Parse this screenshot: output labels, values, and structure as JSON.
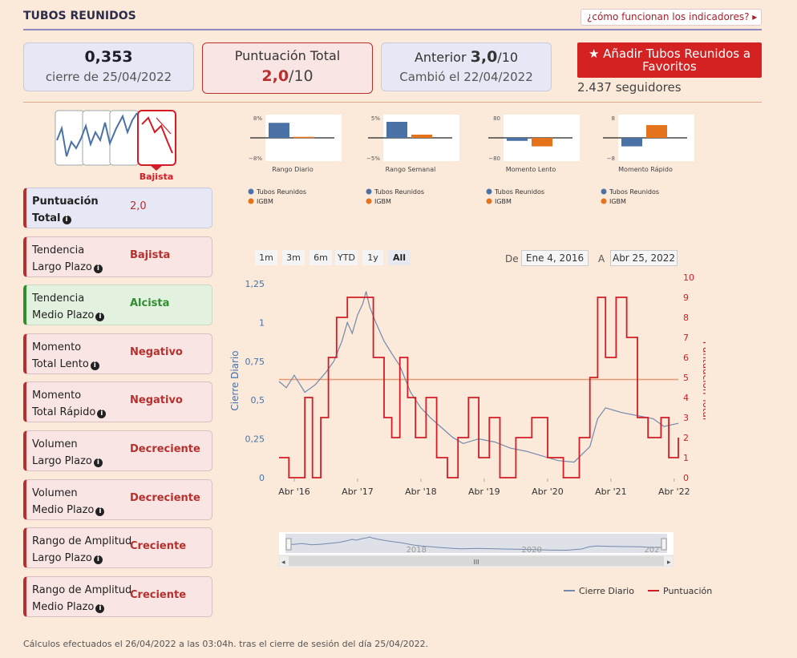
{
  "header": {
    "title": "TUBOS REUNIDOS",
    "help_link": "¿cómo funcionan los indicadores? ▸"
  },
  "close_card": {
    "value": "0,353",
    "caption": "cierre de 25/04/2022"
  },
  "score_card": {
    "title": "Puntuación Total",
    "value": "2,0",
    "suffix": "/10"
  },
  "previous_card": {
    "label": "Anterior ",
    "value": "3,0",
    "suffix": "/10",
    "caption": "Cambió el 22/04/2022"
  },
  "favorites": {
    "label": "★ Añadir Tubos Reunidos a Favoritos",
    "followers": "2.437 seguidores"
  },
  "trend_icon": {
    "label": "Bajista"
  },
  "indicators": [
    {
      "line1": "Puntuación",
      "line2": "Total",
      "value": "2,0",
      "style": "blue"
    },
    {
      "line1": "Tendencia",
      "line2": "Largo Plazo",
      "value": "Bajista",
      "style": "red"
    },
    {
      "line1": "Tendencia",
      "line2": "Medio Plazo",
      "value": "Alcista",
      "style": "green"
    },
    {
      "line1": "Momento",
      "line2": "Total Lento",
      "value": "Negativo",
      "style": "red"
    },
    {
      "line1": "Momento",
      "line2": "Total Rápido",
      "value": "Negativo",
      "style": "red"
    },
    {
      "line1": "Volumen",
      "line2": "Largo Plazo",
      "value": "Decreciente",
      "style": "red"
    },
    {
      "line1": "Volumen",
      "line2": "Medio Plazo",
      "value": "Decreciente",
      "style": "red"
    },
    {
      "line1": "Rango de Amplitud",
      "line2": "Largo Plazo",
      "value": "Creciente",
      "style": "red"
    },
    {
      "line1": "Rango de Amplitud",
      "line2": "Medio Plazo",
      "value": "Creciente",
      "style": "red"
    }
  ],
  "mini_legend": {
    "series1": "Tubos Reunidos",
    "series2": "IGBM"
  },
  "range_buttons": [
    "1m",
    "3m",
    "6m",
    "YTD",
    "1y",
    "All"
  ],
  "date_range": {
    "from_label": "De",
    "from": "Ene 4, 2016",
    "to_label": "A",
    "to": "Abr 25, 2022"
  },
  "legend": {
    "close": "Cierre Diario",
    "score": "Puntuación"
  },
  "navigator": {
    "labels": [
      "2018",
      "2020",
      "202"
    ],
    "handle": "III"
  },
  "footer": "Cálculos efectuados el 26/04/2022 a las 03:04h. tras el cierre de sesión del día 25/04/2022.",
  "colors": {
    "tubos": "#4a72a6",
    "igbm": "#e4731b",
    "score": "#d41c26",
    "close": "#7389ad"
  },
  "chart_data": [
    {
      "type": "bar",
      "title": "Rango Diario",
      "ylim": [
        -8,
        8
      ],
      "tick_labels": [
        "8%",
        "−8%"
      ],
      "series": [
        {
          "name": "Tubos Reunidos",
          "values": [
            6
          ]
        },
        {
          "name": "IGBM",
          "values": [
            0.4
          ]
        }
      ]
    },
    {
      "type": "bar",
      "title": "Rango Semanal",
      "ylim": [
        -5,
        5
      ],
      "tick_labels": [
        "5%",
        "−5%"
      ],
      "series": [
        {
          "name": "Tubos Reunidos",
          "values": [
            4
          ]
        },
        {
          "name": "IGBM",
          "values": [
            0.8
          ]
        }
      ]
    },
    {
      "type": "bar",
      "title": "Momento Lento",
      "ylim": [
        -80,
        80
      ],
      "tick_labels": [
        "80",
        "−80"
      ],
      "series": [
        {
          "name": "Tubos Reunidos",
          "values": [
            -12
          ]
        },
        {
          "name": "IGBM",
          "values": [
            -34
          ]
        }
      ]
    },
    {
      "type": "bar",
      "title": "Momento Rápido",
      "ylim": [
        -8,
        8
      ],
      "tick_labels": [
        "8",
        "−8"
      ],
      "series": [
        {
          "name": "Tubos Reunidos",
          "values": [
            -3.4
          ]
        },
        {
          "name": "IGBM",
          "values": [
            5.1
          ]
        }
      ]
    },
    {
      "type": "line",
      "xlim": [
        "2016-01-04",
        "2022-04-25"
      ],
      "x_tick_labels": [
        "Abr '16",
        "Abr '17",
        "Abr '18",
        "Abr '19",
        "Abr '20",
        "Abr '21",
        "Abr '22"
      ],
      "ylabel": "Cierre Diario",
      "ylim": [
        0,
        1.25
      ],
      "y_tick_labels": [
        "0",
        "0,25",
        "0,5",
        "0,75",
        "1",
        "1,25"
      ],
      "y2label": "Puntuación Total",
      "y2lim": [
        0,
        10
      ],
      "y2_tick_labels": [
        "0",
        "1",
        "2",
        "3",
        "4",
        "5",
        "6",
        "7",
        "8",
        "9",
        "10"
      ],
      "reference_line_y2": 4.9,
      "series": [
        {
          "name": "Cierre Diario",
          "axis": "y",
          "points": [
            [
              "2016-01-04",
              0.62
            ],
            [
              "2016-02-15",
              0.58
            ],
            [
              "2016-04-01",
              0.66
            ],
            [
              "2016-06-01",
              0.55
            ],
            [
              "2016-08-01",
              0.6
            ],
            [
              "2016-10-01",
              0.68
            ],
            [
              "2016-11-15",
              0.75
            ],
            [
              "2017-01-01",
              0.88
            ],
            [
              "2017-02-01",
              1.0
            ],
            [
              "2017-03-01",
              0.93
            ],
            [
              "2017-04-01",
              1.05
            ],
            [
              "2017-05-01",
              1.12
            ],
            [
              "2017-05-20",
              1.2
            ],
            [
              "2017-06-10",
              1.1
            ],
            [
              "2017-07-15",
              1.0
            ],
            [
              "2017-09-01",
              0.88
            ],
            [
              "2017-10-15",
              0.8
            ],
            [
              "2017-12-01",
              0.72
            ],
            [
              "2018-02-01",
              0.55
            ],
            [
              "2018-04-01",
              0.45
            ],
            [
              "2018-06-01",
              0.38
            ],
            [
              "2018-08-01",
              0.32
            ],
            [
              "2018-10-01",
              0.26
            ],
            [
              "2018-12-01",
              0.22
            ],
            [
              "2019-03-01",
              0.25
            ],
            [
              "2019-06-01",
              0.23
            ],
            [
              "2019-09-01",
              0.19
            ],
            [
              "2019-12-01",
              0.17
            ],
            [
              "2020-03-01",
              0.14
            ],
            [
              "2020-06-01",
              0.11
            ],
            [
              "2020-09-01",
              0.1
            ],
            [
              "2020-12-01",
              0.2
            ],
            [
              "2021-01-15",
              0.38
            ],
            [
              "2021-03-01",
              0.45
            ],
            [
              "2021-06-01",
              0.42
            ],
            [
              "2021-09-01",
              0.4
            ],
            [
              "2021-12-01",
              0.38
            ],
            [
              "2022-02-01",
              0.33
            ],
            [
              "2022-04-25",
              0.35
            ]
          ]
        },
        {
          "name": "Puntuación",
          "axis": "y2",
          "points": [
            [
              "2016-01-04",
              1
            ],
            [
              "2016-03-01",
              0
            ],
            [
              "2016-06-01",
              4
            ],
            [
              "2016-07-15",
              0
            ],
            [
              "2016-09-01",
              3
            ],
            [
              "2016-10-15",
              6
            ],
            [
              "2016-12-01",
              8
            ],
            [
              "2017-02-01",
              9
            ],
            [
              "2017-06-01",
              9
            ],
            [
              "2017-07-01",
              6
            ],
            [
              "2017-09-01",
              3
            ],
            [
              "2017-10-15",
              2
            ],
            [
              "2017-12-01",
              6
            ],
            [
              "2018-01-15",
              4
            ],
            [
              "2018-03-01",
              2
            ],
            [
              "2018-05-01",
              4
            ],
            [
              "2018-07-01",
              1
            ],
            [
              "2018-09-01",
              0
            ],
            [
              "2018-11-01",
              2
            ],
            [
              "2019-01-01",
              4
            ],
            [
              "2019-03-01",
              1
            ],
            [
              "2019-05-01",
              3
            ],
            [
              "2019-07-01",
              0
            ],
            [
              "2019-10-01",
              2
            ],
            [
              "2020-01-01",
              3
            ],
            [
              "2020-04-01",
              1
            ],
            [
              "2020-07-01",
              0
            ],
            [
              "2020-10-01",
              2
            ],
            [
              "2020-12-01",
              5
            ],
            [
              "2021-01-15",
              9
            ],
            [
              "2021-03-01",
              6
            ],
            [
              "2021-05-01",
              9
            ],
            [
              "2021-07-01",
              7
            ],
            [
              "2021-09-01",
              3
            ],
            [
              "2021-11-01",
              2
            ],
            [
              "2022-01-15",
              3
            ],
            [
              "2022-03-01",
              1
            ],
            [
              "2022-04-25",
              2
            ]
          ]
        }
      ]
    }
  ]
}
